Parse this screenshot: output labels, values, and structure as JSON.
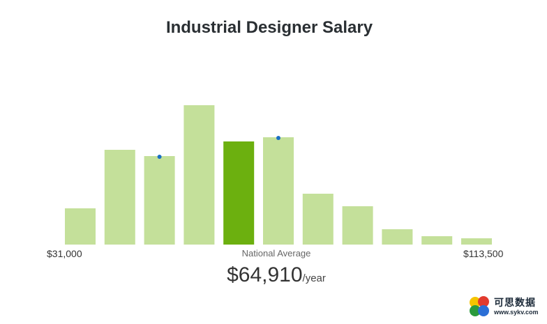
{
  "chart_data": {
    "type": "bar",
    "title": "Industrial Designer Salary",
    "min_label": "$31,000",
    "max_label": "$113,500",
    "average_caption": "National Average",
    "average_value": "$64,910",
    "average_unit": "/year",
    "ylim": [
      0,
      200
    ],
    "values": [
      52,
      136,
      127,
      200,
      148,
      154,
      73,
      55,
      22,
      12,
      9
    ],
    "highlight_index": 4,
    "markers": [
      {
        "bar_index": 2,
        "value": 127
      },
      {
        "bar_index": 5,
        "value": 154
      }
    ],
    "colors": {
      "bar": "#c4e09a",
      "highlight": "#6cb00f",
      "marker": "#1a6fc4"
    }
  },
  "watermark": {
    "text": "可思数据",
    "url": "www.sykv.com"
  }
}
